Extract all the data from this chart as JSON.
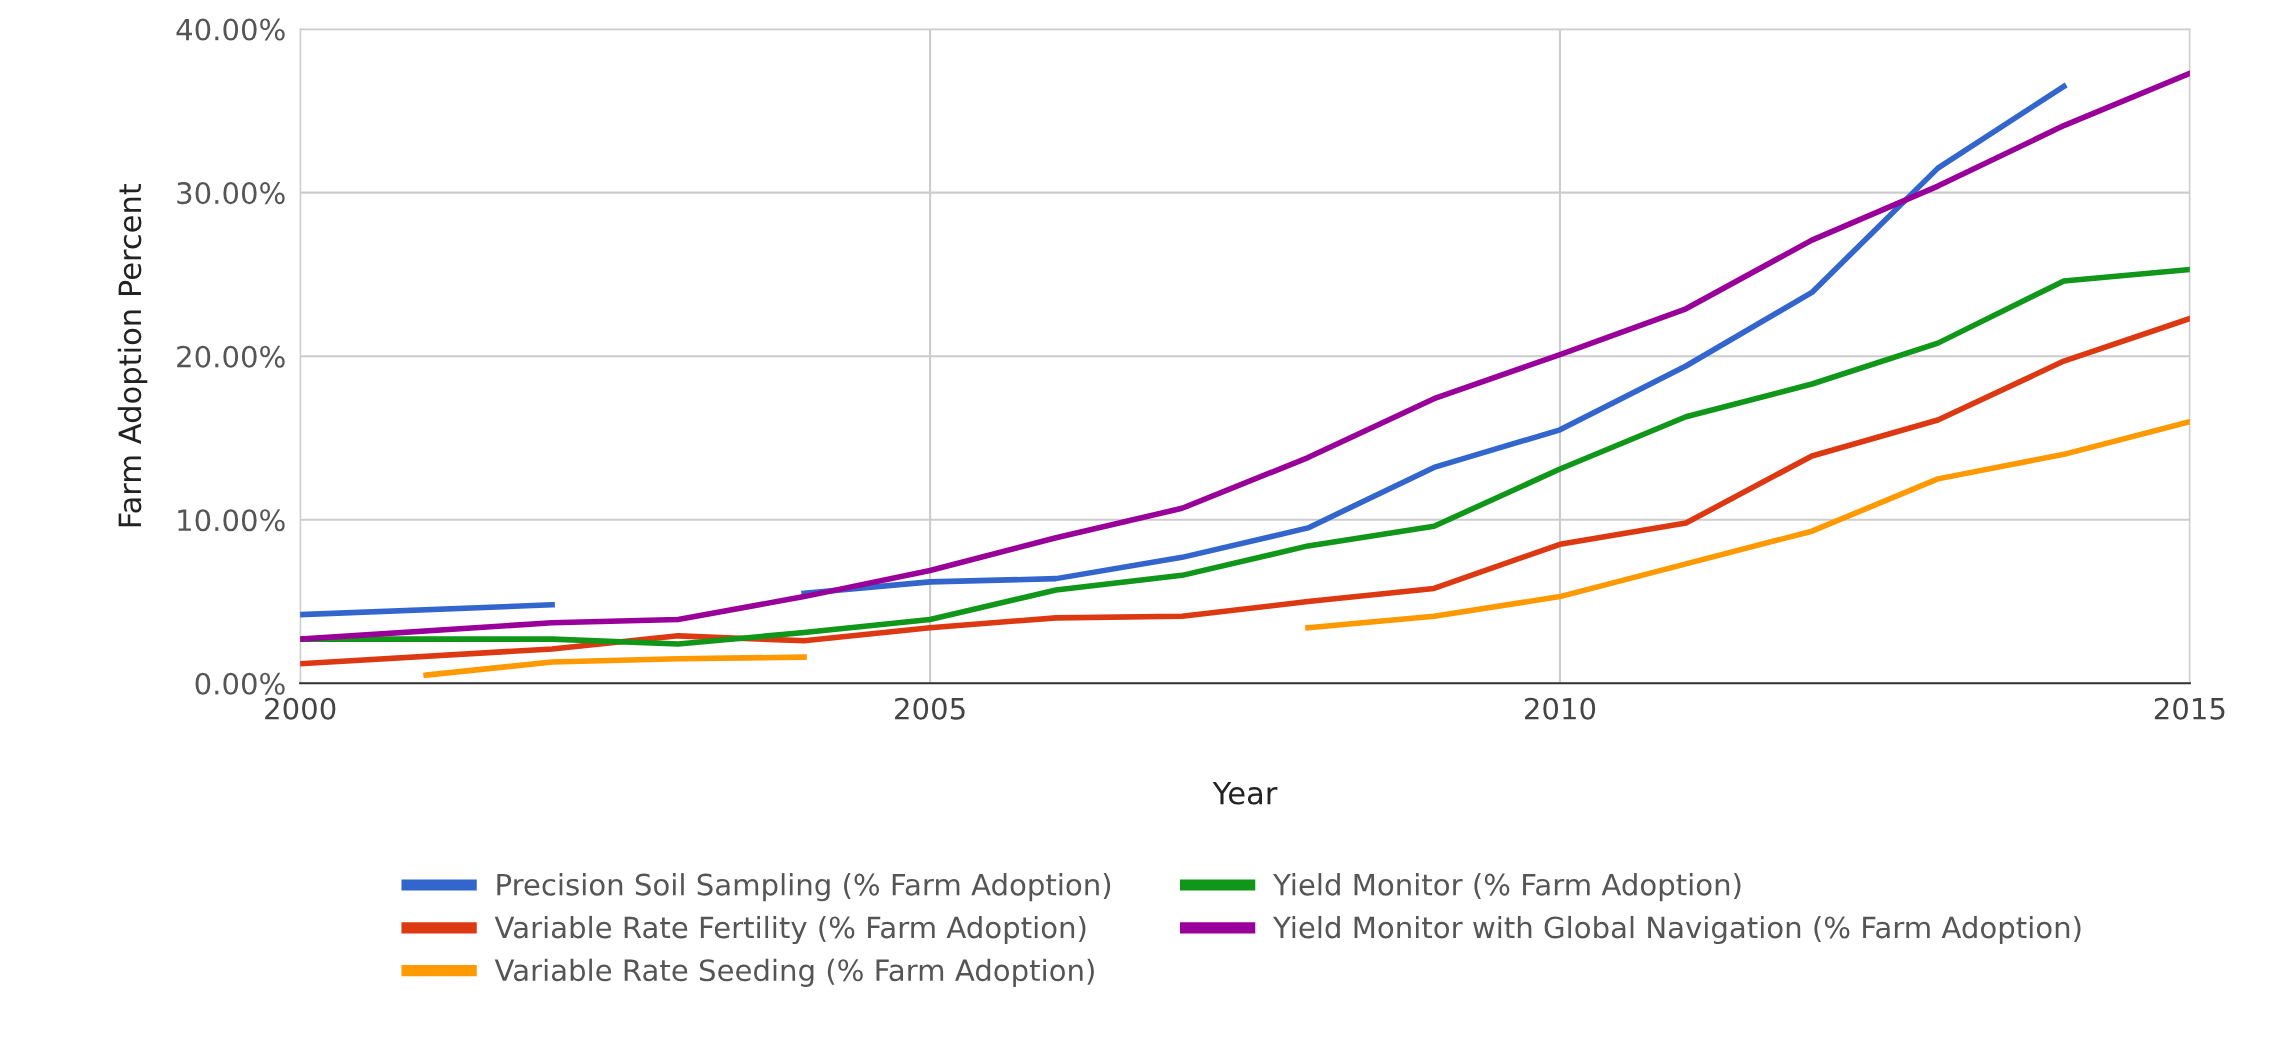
{
  "chart_data": {
    "type": "line",
    "xlabel": "Year",
    "ylabel": "Farm Adoption Percent",
    "xlim": [
      2000,
      2015
    ],
    "xticks": [
      2000,
      2005,
      2010,
      2015
    ],
    "ylim": [
      0,
      40
    ],
    "yticks": [
      {
        "value": 0,
        "label": "0.00%"
      },
      {
        "value": 10,
        "label": "10.00%"
      },
      {
        "value": 20,
        "label": "20.00%"
      },
      {
        "value": 30,
        "label": "30.00%"
      },
      {
        "value": 40,
        "label": "40.00%"
      }
    ],
    "grid": true,
    "legend": "bottom",
    "marker": "none",
    "line_style": "solid",
    "series": [
      {
        "name": "Precision Soil Sampling (% Farm Adoption)",
        "color": "#3366cc",
        "x": [
          2000,
          2002,
          2003,
          2004,
          2005,
          2006,
          2007,
          2008,
          2009,
          2010,
          2011,
          2012,
          2013,
          2014
        ],
        "values": [
          4.2,
          4.8,
          null,
          5.5,
          6.2,
          6.4,
          7.7,
          9.5,
          13.2,
          15.5,
          19.4,
          23.9,
          31.5,
          36.5
        ]
      },
      {
        "name": "Variable Rate Fertility (% Farm Adoption)",
        "color": "#dc3912",
        "x": [
          2000,
          2002,
          2003,
          2004,
          2005,
          2006,
          2007,
          2008,
          2009,
          2010,
          2011,
          2012,
          2013,
          2014,
          2015
        ],
        "values": [
          1.2,
          2.1,
          2.9,
          2.6,
          3.4,
          4.0,
          4.1,
          5.0,
          5.8,
          8.5,
          9.8,
          13.9,
          16.1,
          19.7,
          22.3
        ]
      },
      {
        "name": "Variable Rate Seeding (% Farm Adoption)",
        "color": "#ff9900",
        "x": [
          2001,
          2002,
          2003,
          2004,
          2006,
          2008,
          2009,
          2010,
          2011,
          2012,
          2013,
          2014,
          2015
        ],
        "values": [
          0.5,
          1.3,
          1.5,
          1.6,
          null,
          3.4,
          4.1,
          5.3,
          7.3,
          9.3,
          12.5,
          14.0,
          16.0
        ]
      },
      {
        "name": "Yield Monitor (% Farm Adoption)",
        "color": "#109618",
        "x": [
          2000,
          2002,
          2003,
          2004,
          2005,
          2006,
          2007,
          2008,
          2009,
          2010,
          2011,
          2012,
          2013,
          2014,
          2015
        ],
        "values": [
          2.7,
          2.7,
          2.4,
          3.1,
          3.9,
          5.7,
          6.6,
          8.4,
          9.6,
          13.1,
          16.3,
          18.3,
          20.8,
          24.6,
          25.3
        ]
      },
      {
        "name": "Yield Monitor with Global Navigation (% Farm Adoption)",
        "color": "#990099",
        "x": [
          2000,
          2002,
          2003,
          2004,
          2005,
          2006,
          2007,
          2008,
          2009,
          2010,
          2011,
          2012,
          2013,
          2014,
          2015
        ],
        "values": [
          2.7,
          3.7,
          3.9,
          5.3,
          6.9,
          8.9,
          10.7,
          13.8,
          17.4,
          20.1,
          22.9,
          27.1,
          30.4,
          34.1,
          37.3
        ]
      }
    ]
  }
}
